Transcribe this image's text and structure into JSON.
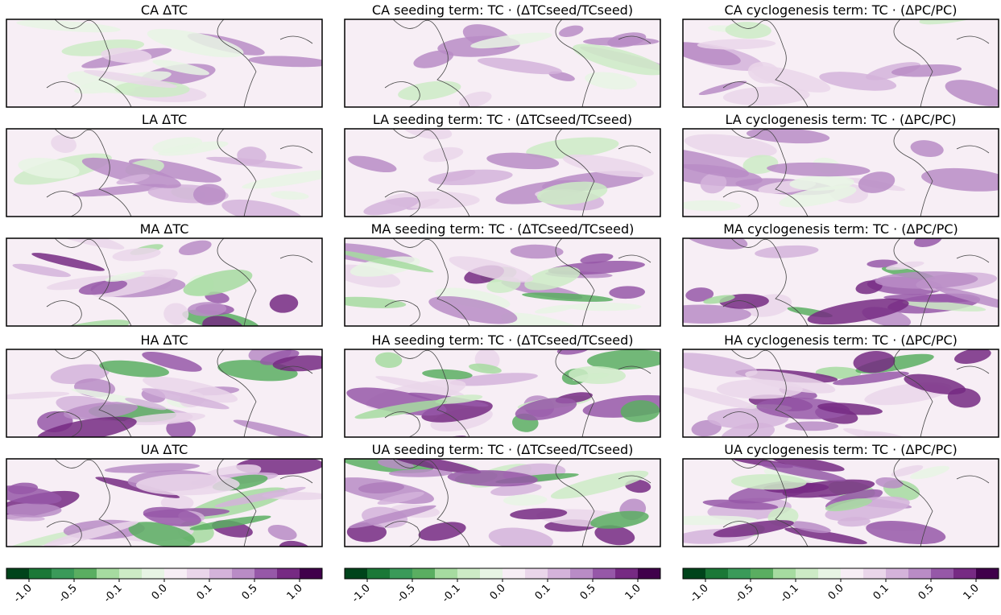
{
  "panels": [
    [
      "CA ΔTC",
      "CA seeding term: TC · (ΔTCseed/TCseed)",
      "CA cyclogenesis term: TC · (ΔPC/PC)"
    ],
    [
      "LA ΔTC",
      "LA seeding term: TC · (ΔTCseed/TCseed)",
      "LA cyclogenesis term: TC · (ΔPC/PC)"
    ],
    [
      "MA ΔTC",
      "MA seeding term: TC · (ΔTCseed/TCseed)",
      "MA cyclogenesis term: TC · (ΔPC/PC)"
    ],
    [
      "HA ΔTC",
      "HA seeding term: TC · (ΔTCseed/TCseed)",
      "HA cyclogenesis term: TC · (ΔPC/PC)"
    ],
    [
      "UA ΔTC",
      "UA seeding term: TC · (ΔTCseed/TCseed)",
      "UA cyclogenesis term: TC · (ΔPC/PC)"
    ]
  ],
  "colorbar": {
    "boundaries": [
      -1.5,
      -1.0,
      -0.7,
      -0.5,
      -0.3,
      -0.1,
      -0.05,
      0,
      0.05,
      0.1,
      0.3,
      0.5,
      0.7,
      1.0,
      1.5
    ],
    "colors": [
      "#00441b",
      "#1b7837",
      "#3a9a59",
      "#5aae61",
      "#a6dba0",
      "#cdebc6",
      "#e7f4e4",
      "#f7eef5",
      "#ead6ea",
      "#d4b3da",
      "#b98cc6",
      "#9658a8",
      "#762a83",
      "#40004b"
    ],
    "ticks": [
      {
        "value": -1,
        "label": "-1.0"
      },
      -0.5,
      -0.1,
      {
        "value": 0,
        "label": "0.0"
      },
      0.1,
      0.5,
      {
        "value": 1,
        "label": "1.0"
      }
    ]
  }
}
